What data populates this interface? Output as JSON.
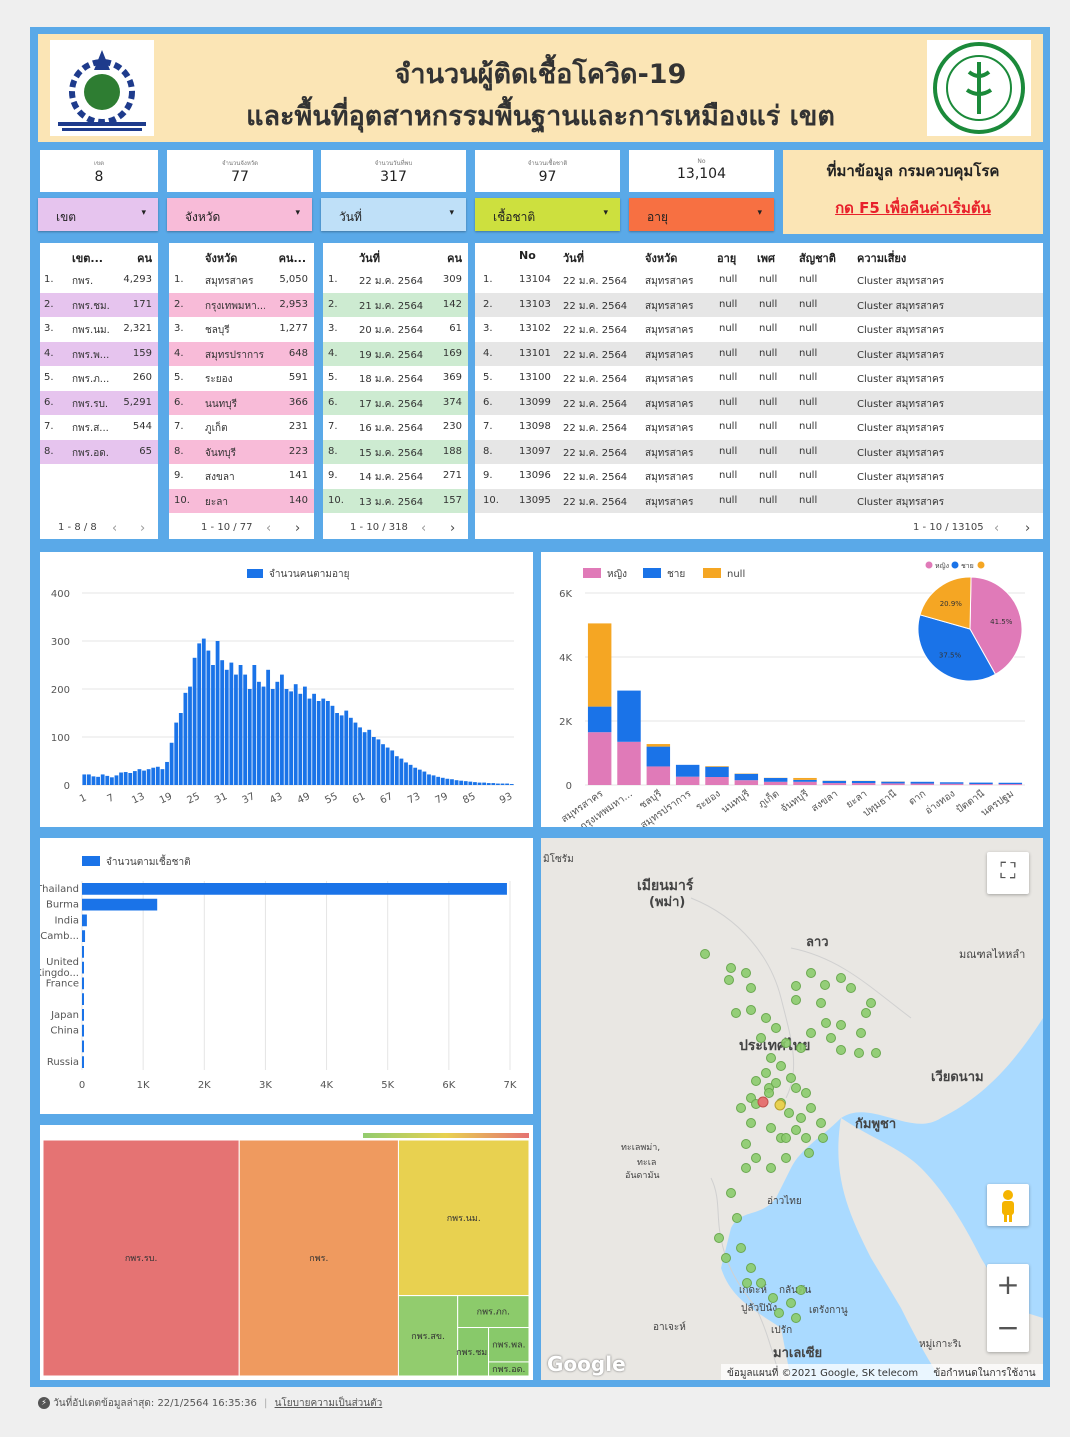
{
  "header": {
    "title_line1": "จำนวนผู้ติดเชื้อโควิด-19",
    "title_line2": "และพื้นที่อุตสาหกรรมพื้นฐานและการเหมืองแร่ เขต"
  },
  "kpis": [
    {
      "label": "เขต",
      "value": "8"
    },
    {
      "label": "จำนวนจังหวัด",
      "value": "77"
    },
    {
      "label": "จำนวนวันที่พบ",
      "value": "317"
    },
    {
      "label": "จำนวนเชื้อชาติ",
      "value": "97"
    },
    {
      "label": "No",
      "value": "13,104"
    }
  ],
  "source": {
    "line1": "ที่มาข้อมูล กรมควบคุมโรค",
    "line2": "กด F5 เพื่อคืนค่าเริ่มต้น"
  },
  "filters": [
    {
      "label": "เขต",
      "color": "#e6c4ee"
    },
    {
      "label": "จังหวัด",
      "color": "#f8bbd8"
    },
    {
      "label": "วันที่",
      "color": "#bfe0f8"
    },
    {
      "label": "เชื้อชาติ",
      "color": "#cde03e"
    },
    {
      "label": "อายุ",
      "color": "#f77042"
    }
  ],
  "zone_table": {
    "headers": [
      "เขต...",
      "คน"
    ],
    "rows": [
      [
        "1.",
        "กพร.",
        "4,293"
      ],
      [
        "2.",
        "กพร.ชม.",
        "171"
      ],
      [
        "3.",
        "กพร.นม.",
        "2,321"
      ],
      [
        "4.",
        "กพร.พ...",
        "159"
      ],
      [
        "5.",
        "กพร.ภ...",
        "260"
      ],
      [
        "6.",
        "กพร.รบ.",
        "5,291"
      ],
      [
        "7.",
        "กพร.ส...",
        "544"
      ],
      [
        "8.",
        "กพร.อด.",
        "65"
      ]
    ],
    "pagination": "1 - 8 / 8"
  },
  "province_table": {
    "headers": [
      "จังหวัด",
      "คน..."
    ],
    "rows": [
      [
        "1.",
        "สมุทรสาคร",
        "5,050"
      ],
      [
        "2.",
        "กรุงเทพมหา...",
        "2,953"
      ],
      [
        "3.",
        "ชลบุรี",
        "1,277"
      ],
      [
        "4.",
        "สมุทรปราการ",
        "648"
      ],
      [
        "5.",
        "ระยอง",
        "591"
      ],
      [
        "6.",
        "นนทบุรี",
        "366"
      ],
      [
        "7.",
        "ภูเก็ต",
        "231"
      ],
      [
        "8.",
        "จันทบุรี",
        "223"
      ],
      [
        "9.",
        "สงขลา",
        "141"
      ],
      [
        "10.",
        "ยะลา",
        "140"
      ]
    ],
    "pagination": "1 - 10 / 77"
  },
  "date_table": {
    "headers": [
      "วันที่",
      "คน"
    ],
    "rows": [
      [
        "1.",
        "22 ม.ค. 2564",
        "309"
      ],
      [
        "2.",
        "21 ม.ค. 2564",
        "142"
      ],
      [
        "3.",
        "20 ม.ค. 2564",
        "61"
      ],
      [
        "4.",
        "19 ม.ค. 2564",
        "169"
      ],
      [
        "5.",
        "18 ม.ค. 2564",
        "369"
      ],
      [
        "6.",
        "17 ม.ค. 2564",
        "374"
      ],
      [
        "7.",
        "16 ม.ค. 2564",
        "230"
      ],
      [
        "8.",
        "15 ม.ค. 2564",
        "188"
      ],
      [
        "9.",
        "14 ม.ค. 2564",
        "271"
      ],
      [
        "10.",
        "13 ม.ค. 2564",
        "157"
      ]
    ],
    "pagination": "1 - 10 / 318"
  },
  "case_table": {
    "headers": [
      "No",
      "วันที่",
      "จังหวัด",
      "อายุ",
      "เพศ",
      "สัญชาติ",
      "ความเสี่ยง"
    ],
    "rows": [
      [
        "1.",
        "13104",
        "22 ม.ค. 2564",
        "สมุทรสาคร",
        "null",
        "null",
        "null",
        "Cluster สมุทรสาคร"
      ],
      [
        "2.",
        "13103",
        "22 ม.ค. 2564",
        "สมุทรสาคร",
        "null",
        "null",
        "null",
        "Cluster สมุทรสาคร"
      ],
      [
        "3.",
        "13102",
        "22 ม.ค. 2564",
        "สมุทรสาคร",
        "null",
        "null",
        "null",
        "Cluster สมุทรสาคร"
      ],
      [
        "4.",
        "13101",
        "22 ม.ค. 2564",
        "สมุทรสาคร",
        "null",
        "null",
        "null",
        "Cluster สมุทรสาคร"
      ],
      [
        "5.",
        "13100",
        "22 ม.ค. 2564",
        "สมุทรสาคร",
        "null",
        "null",
        "null",
        "Cluster สมุทรสาคร"
      ],
      [
        "6.",
        "13099",
        "22 ม.ค. 2564",
        "สมุทรสาคร",
        "null",
        "null",
        "null",
        "Cluster สมุทรสาคร"
      ],
      [
        "7.",
        "13098",
        "22 ม.ค. 2564",
        "สมุทรสาคร",
        "null",
        "null",
        "null",
        "Cluster สมุทรสาคร"
      ],
      [
        "8.",
        "13097",
        "22 ม.ค. 2564",
        "สมุทรสาคร",
        "null",
        "null",
        "null",
        "Cluster สมุทรสาคร"
      ],
      [
        "9.",
        "13096",
        "22 ม.ค. 2564",
        "สมุทรสาคร",
        "null",
        "null",
        "null",
        "Cluster สมุทรสาคร"
      ],
      [
        "10.",
        "13095",
        "22 ม.ค. 2564",
        "สมุทรสาคร",
        "null",
        "null",
        "null",
        "Cluster สมุทรสาคร"
      ]
    ],
    "pagination": "1 - 10 / 13105"
  },
  "chart_data": [
    {
      "type": "bar",
      "legend": "จำนวนคนตามอายุ",
      "series": [
        {
          "name": "จำนวนคนตามอายุ",
          "color": "#1a73e8"
        }
      ],
      "x_ticks": [
        "1",
        "7",
        "13",
        "19",
        "25",
        "31",
        "37",
        "43",
        "49",
        "55",
        "61",
        "67",
        "73",
        "79",
        "85",
        "93"
      ],
      "ylim": [
        0,
        400
      ],
      "y_ticks": [
        0,
        100,
        200,
        300,
        400
      ],
      "x_start": 0,
      "values": [
        22,
        22,
        18,
        17,
        22,
        19,
        16,
        20,
        26,
        27,
        25,
        29,
        33,
        30,
        33,
        36,
        38,
        33,
        48,
        88,
        130,
        150,
        192,
        205,
        265,
        295,
        305,
        280,
        250,
        300,
        260,
        240,
        255,
        230,
        250,
        230,
        200,
        250,
        215,
        205,
        240,
        200,
        215,
        230,
        200,
        195,
        210,
        190,
        205,
        180,
        190,
        175,
        180,
        175,
        165,
        150,
        145,
        155,
        140,
        130,
        120,
        110,
        115,
        100,
        95,
        85,
        78,
        72,
        60,
        55,
        47,
        42,
        36,
        32,
        28,
        22,
        20,
        17,
        15,
        13,
        12,
        10,
        9,
        8,
        7,
        6,
        5,
        5,
        4,
        4,
        3,
        3,
        3,
        2
      ]
    },
    {
      "type": "bar",
      "stacked": true,
      "categories": [
        "สมุทรสาคร",
        "กรุงเทพมหา...",
        "ชลบุรี",
        "สมุทรปราการ",
        "ระยอง",
        "นนทบุรี",
        "ภูเก็ต",
        "จันทบุรี",
        "สงขลา",
        "ยะลา",
        "ปทุมธานี",
        "ตาก",
        "อ่างทอง",
        "ปัตตานี",
        "นครปฐม"
      ],
      "series": [
        {
          "name": "หญิง",
          "color": "#e07ab8",
          "values": [
            1650,
            1350,
            580,
            260,
            250,
            150,
            100,
            100,
            60,
            60,
            50,
            45,
            40,
            30,
            30
          ]
        },
        {
          "name": "ชาย",
          "color": "#1a73e8",
          "values": [
            800,
            1600,
            620,
            370,
            320,
            200,
            120,
            60,
            70,
            65,
            55,
            55,
            45,
            45,
            40
          ]
        },
        {
          "name": "null",
          "color": "#f5a623",
          "values": [
            2600,
            0,
            80,
            0,
            20,
            10,
            5,
            60,
            5,
            5,
            5,
            0,
            0,
            0,
            0
          ]
        }
      ],
      "ylim": [
        0,
        6000
      ],
      "y_ticks": [
        "0",
        "2K",
        "4K",
        "6K"
      ]
    },
    {
      "type": "pie",
      "legend": [
        "หญิง",
        "ชาย",
        ""
      ],
      "slices": [
        {
          "name": "หญิง",
          "value": 41.5,
          "label": "41.5%",
          "color": "#e07ab8"
        },
        {
          "name": "ชาย",
          "value": 37.5,
          "label": "37.5%",
          "color": "#1a73e8"
        },
        {
          "name": "null",
          "value": 20.9,
          "label": "20.9%",
          "color": "#f5a623"
        }
      ]
    },
    {
      "type": "bar",
      "orientation": "horizontal",
      "legend": "จำนวนตามเชื้อชาติ",
      "categories": [
        "Thailand",
        "Burma",
        "India",
        "Camb...",
        "",
        "United Kingdo...",
        "France",
        "",
        "Japan",
        "China",
        "",
        "Russia"
      ],
      "values": [
        6950,
        1230,
        80,
        50,
        30,
        30,
        25,
        20,
        20,
        15,
        10,
        10
      ],
      "xlim": [
        0,
        7000
      ],
      "x_ticks": [
        "0",
        "1K",
        "2K",
        "3K",
        "4K",
        "5K",
        "6K",
        "7K"
      ]
    },
    {
      "type": "treemap",
      "items": [
        {
          "name": "กพร.รบ.",
          "value": 5291,
          "color": "#e57373"
        },
        {
          "name": "กพร.",
          "value": 4293,
          "color": "#ef9a5f"
        },
        {
          "name": "กพร.นม.",
          "value": 2321,
          "color": "#e8d150"
        },
        {
          "name": "กพร.สข.",
          "value": 544,
          "color": "#92cc6e"
        },
        {
          "name": "กพร.ภก.",
          "value": 260,
          "color": "#8ccb6b"
        },
        {
          "name": "กพร.ชม.",
          "value": 171,
          "color": "#88c96a"
        },
        {
          "name": "กพร.พล.",
          "value": 159,
          "color": "#88c96a"
        },
        {
          "name": "กพร.อด.",
          "value": 65,
          "color": "#86c868"
        }
      ]
    }
  ],
  "map": {
    "labels": [
      {
        "text": "มิโซรัม"
      },
      {
        "text": "เมียนมาร์"
      },
      {
        "text": "(พม่า)"
      },
      {
        "text": "ลาว"
      },
      {
        "text": "มณฑลไหหลำ"
      },
      {
        "text": "ประเทศไทย"
      },
      {
        "text": "เวียดนาม"
      },
      {
        "text": "กัมพูชา"
      },
      {
        "text": "ทะเลพม่า,"
      },
      {
        "text": "ทะเล"
      },
      {
        "text": "อันดามัน"
      },
      {
        "text": "อ่าวไทย"
      },
      {
        "text": "เกดะห์"
      },
      {
        "text": "กลันตัน"
      },
      {
        "text": "ปูลัวปินัง"
      },
      {
        "text": "เตรังกานู"
      },
      {
        "text": "อาเจะห์"
      },
      {
        "text": "เปรัก"
      },
      {
        "text": "มาเลเซีย"
      },
      {
        "text": "หมู่เกาะริเ"
      }
    ],
    "google": "Google",
    "attribution": "ข้อมูลแผนที่ ©2021 Google, SK telecom",
    "terms": "ข้อกำหนดในการใช้งาน"
  },
  "footer": {
    "updated": "วันที่อัปเดตข้อมูลล่าสุด: 22/1/2564 16:35:36",
    "privacy": "นโยบายความเป็นส่วนตัว"
  }
}
